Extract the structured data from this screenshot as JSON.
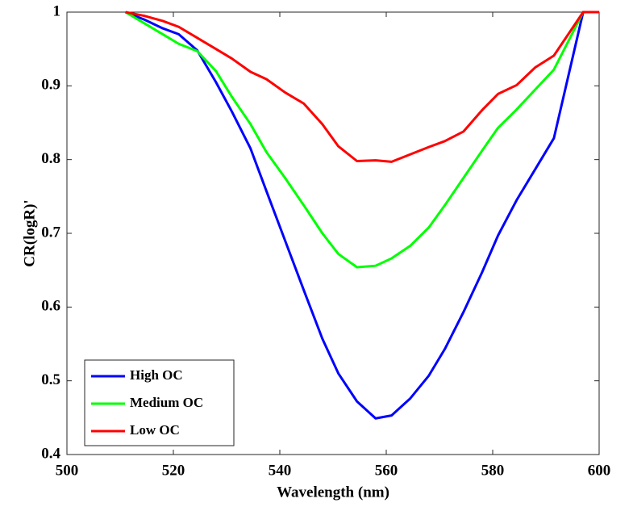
{
  "chart_data": {
    "type": "line",
    "xlabel": "Wavelength (nm)",
    "ylabel": "CR(logR)'",
    "x": [
      511,
      514.5,
      518,
      521,
      524.5,
      528,
      531,
      534.5,
      537.5,
      541,
      544.5,
      548,
      551,
      554.5,
      558,
      561,
      564.5,
      568,
      571,
      574.5,
      578,
      581,
      584.5,
      588,
      591.5,
      597,
      600
    ],
    "series": [
      {
        "name": "High OC",
        "color": "#0000ff",
        "values": [
          1,
          0.99,
          0.978,
          0.97,
          0.948,
          0.905,
          0.865,
          0.815,
          0.757,
          0.69,
          0.623,
          0.557,
          0.51,
          0.472,
          0.449,
          0.453,
          0.476,
          0.507,
          0.543,
          0.593,
          0.647,
          0.697,
          0.745,
          0.787,
          0.829,
          1,
          1
        ]
      },
      {
        "name": "Medium OC",
        "color": "#00ff00",
        "values": [
          1,
          0.985,
          0.97,
          0.957,
          0.947,
          0.92,
          0.885,
          0.848,
          0.81,
          0.775,
          0.738,
          0.7,
          0.672,
          0.654,
          0.656,
          0.666,
          0.683,
          0.708,
          0.738,
          0.775,
          0.812,
          0.843,
          0.868,
          0.895,
          0.922,
          1,
          1
        ]
      },
      {
        "name": "Low OC",
        "color": "#ff0000",
        "values": [
          1,
          0.995,
          0.988,
          0.98,
          0.965,
          0.95,
          0.937,
          0.919,
          0.909,
          0.891,
          0.876,
          0.848,
          0.818,
          0.798,
          0.799,
          0.797,
          0.807,
          0.817,
          0.825,
          0.838,
          0.867,
          0.889,
          0.901,
          0.925,
          0.941,
          1,
          1
        ]
      }
    ],
    "xlim": [
      500,
      600
    ],
    "xticks": [
      500,
      520,
      540,
      560,
      580,
      600
    ],
    "ylim": [
      0.4,
      1
    ],
    "yticks": [
      0.4,
      0.5,
      0.6,
      0.7,
      0.8,
      0.9,
      1
    ],
    "legend": "lower left"
  }
}
